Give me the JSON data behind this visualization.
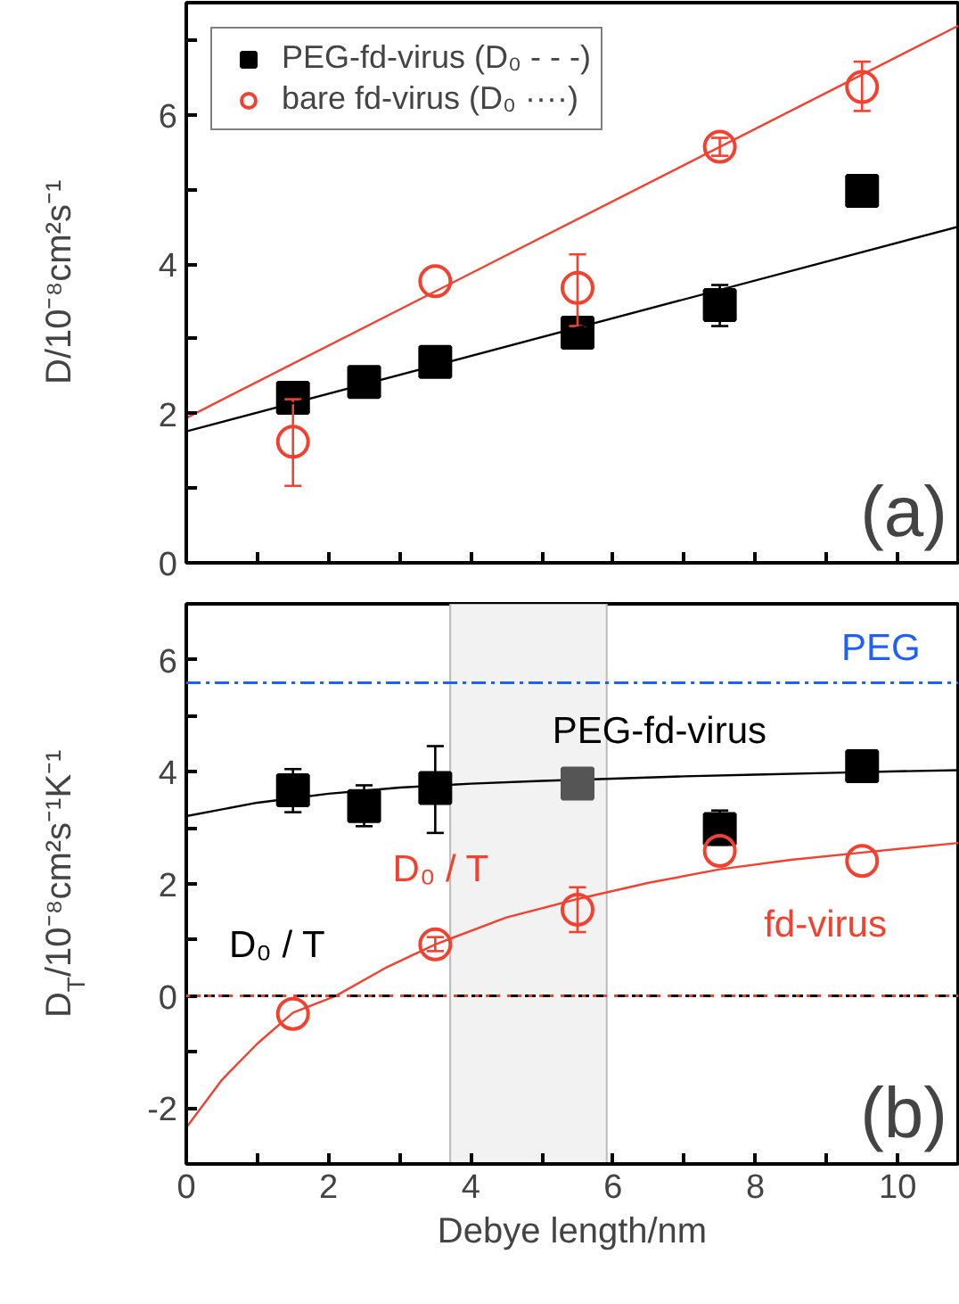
{
  "chart_data": [
    {
      "type": "scatter",
      "ylabel": "D/10⁻⁸cm²s⁻¹",
      "xlim": [
        0,
        10.85
      ],
      "ylim": [
        0,
        7.5
      ],
      "xticks": [
        0,
        {
          "value": 1,
          "label": null
        },
        2,
        {
          "value": 3,
          "label": null
        },
        4,
        {
          "value": 5,
          "label": null
        },
        6,
        {
          "value": 7,
          "label": null
        },
        8,
        {
          "value": 9,
          "label": null
        },
        10
      ],
      "yticks": [
        0,
        {
          "value": 1,
          "label": null
        },
        2,
        {
          "value": 3,
          "label": null
        },
        4,
        {
          "value": 5,
          "label": null
        },
        6,
        {
          "value": 7,
          "label": null
        }
      ],
      "tick_labels": "y",
      "grid": false,
      "legend": "top left",
      "annotations": [
        "(a)"
      ],
      "series": [
        {
          "name": "PEG-fd-virus (D₀ - - -)",
          "marker": "square",
          "color": "#000000",
          "x": [
            1.5,
            2.5,
            3.5,
            5.5,
            7.5,
            9.5
          ],
          "values": [
            2.21,
            2.42,
            2.69,
            3.08,
            3.45,
            4.98
          ],
          "errors": [
            null,
            null,
            null,
            null,
            [
              3.17,
              3.72
            ],
            null
          ]
        },
        {
          "name": "bare fd-virus (D₀ ····)",
          "marker": "circle",
          "color": "#f4412f",
          "x": [
            1.5,
            3.5,
            5.5,
            7.5,
            9.5
          ],
          "values": [
            1.62,
            3.77,
            3.68,
            5.57,
            6.37
          ],
          "errors": [
            [
              1.03,
              2.19
            ],
            null,
            [
              3.17,
              4.13
            ],
            [
              5.45,
              5.69
            ],
            [
              6.05,
              6.71
            ]
          ]
        },
        {
          "type": "line",
          "color": "#000000",
          "x": [
            0,
            10.85
          ],
          "values": [
            1.76,
            4.5
          ]
        },
        {
          "type": "line",
          "color": "#f4412f",
          "x": [
            0,
            10.85
          ],
          "values": [
            1.94,
            7.19
          ]
        }
      ]
    },
    {
      "type": "scatter",
      "ylabel": "D$_{T}$/10⁻⁸cm²s⁻¹K⁻¹",
      "xlabel": "Debye length/nm",
      "xlim": [
        0,
        10.85
      ],
      "ylim": [
        -3,
        7
      ],
      "xticks": [
        0,
        {
          "value": 1,
          "label": null
        },
        2,
        {
          "value": 3,
          "label": null
        },
        4,
        {
          "value": 5,
          "label": null
        },
        6,
        {
          "value": 7,
          "label": null
        },
        8,
        {
          "value": 9,
          "label": null
        },
        10
      ],
      "yticks": [
        -2,
        {
          "value": -1,
          "label": null
        },
        0,
        {
          "value": 1,
          "label": null
        },
        2,
        {
          "value": 3,
          "label": null
        },
        4,
        {
          "value": 5,
          "label": null
        },
        6
      ],
      "grid": false,
      "ref_lines": [
        {
          "axis": "y",
          "value": 5.59,
          "label": "PEG",
          "color": "#1f5fff",
          "line_style": "dashdot"
        },
        {
          "axis": "y",
          "value": 0,
          "label": null,
          "color": "#000000",
          "line_style": "dashed"
        },
        {
          "axis": "y",
          "value": 0,
          "label": null,
          "color": "#f4412f",
          "line_style": "dotted"
        }
      ],
      "bands": [
        {
          "axis": "x",
          "from": 3.71,
          "to": 5.91,
          "label": null,
          "color": "#f2f2f2"
        }
      ],
      "annotations": [
        "PEG-fd-virus",
        "D₀ / T",
        "D₀ / T",
        "fd-virus",
        "(b)"
      ],
      "series": [
        {
          "type": "line",
          "color": "#000000",
          "x": [
            0,
            1,
            2,
            3,
            4,
            5,
            6,
            7,
            8,
            9,
            10,
            10.85
          ],
          "values": [
            3.21,
            3.45,
            3.61,
            3.72,
            3.79,
            3.84,
            3.88,
            3.92,
            3.95,
            3.98,
            4.01,
            4.03
          ]
        },
        {
          "type": "line",
          "color": "#f4412f",
          "x": [
            0,
            0.5,
            1,
            1.5,
            2.1,
            2.8,
            3.5,
            4.5,
            5.5,
            6.5,
            7.5,
            8.5,
            9.5,
            10.85
          ],
          "values": [
            -2.35,
            -1.5,
            -0.85,
            -0.3,
            0,
            0.5,
            0.92,
            1.4,
            1.73,
            2.02,
            2.26,
            2.43,
            2.56,
            2.73
          ]
        },
        {
          "marker": "square",
          "color": "#000000",
          "colors": [
            "#000000",
            "#000000",
            "#000000",
            "#555555",
            "#000000",
            "#000000"
          ],
          "x": [
            1.5,
            2.5,
            3.5,
            5.5,
            7.5,
            9.5
          ],
          "values": [
            3.67,
            3.39,
            3.71,
            3.79,
            2.98,
            4.1
          ],
          "errors": [
            [
              3.28,
              4.05
            ],
            [
              3.03,
              3.76
            ],
            [
              2.91,
              4.46
            ],
            null,
            [
              2.7,
              3.31
            ],
            null
          ]
        },
        {
          "marker": "circle",
          "color": "#f4412f",
          "x": [
            1.5,
            3.5,
            5.5,
            7.5,
            9.5
          ],
          "values": [
            -0.32,
            0.92,
            1.54,
            2.59,
            2.41
          ],
          "errors": [
            null,
            [
              0.8,
              1.05
            ],
            [
              1.14,
              1.94
            ],
            null,
            null
          ]
        }
      ]
    }
  ]
}
